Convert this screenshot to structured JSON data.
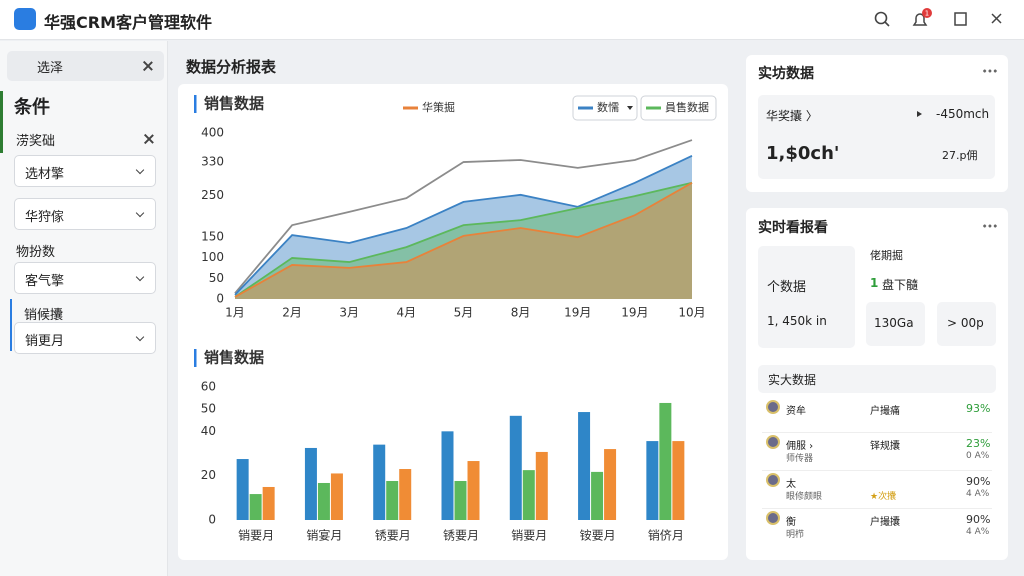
{
  "header": {
    "title": "华强CRM客户管理软件",
    "badge": "1"
  },
  "sidebar": {
    "back": "选泽",
    "section": "条件",
    "group1": "涝奖础",
    "dropdown1": "选材擎",
    "dropdown2": "华狩傢",
    "group2": "物扮数",
    "dropdown3": "客气擎",
    "group3": "销候攮",
    "dropdown4": "销更月"
  },
  "main": {
    "title": "数据分析报表"
  },
  "chart_data": [
    {
      "type": "area",
      "title": "销售数据",
      "categories": [
        "1月",
        "2月",
        "3月",
        "4月",
        "5月",
        "8月",
        "19月",
        "19月",
        "10月"
      ],
      "ylim": [
        0,
        400
      ],
      "yticks": [
        0,
        50,
        100,
        150,
        250,
        330,
        400
      ],
      "grid": false,
      "series": [
        {
          "color": "#8c8c8c",
          "style": "line",
          "values": [
            14,
            178,
            210,
            243,
            330,
            335,
            316,
            335,
            383
          ]
        },
        {
          "name": "数懦",
          "color": "#3b82c4",
          "values": [
            10,
            154,
            135,
            171,
            234,
            251,
            222,
            280,
            345
          ]
        },
        {
          "name": "員售数据",
          "color": "#5cb85c",
          "values": [
            5,
            99,
            89,
            125,
            178,
            190,
            219,
            248,
            280
          ]
        },
        {
          "name": "华策掘",
          "color": "#e8823a",
          "values": [
            5,
            82,
            75,
            89,
            152,
            171,
            149,
            202,
            280
          ]
        }
      ]
    },
    {
      "type": "bar",
      "title": "销售数据",
      "categories": [
        "销要月",
        "销宴月",
        "锈要月",
        "锈要月",
        "销要月",
        "铵要月",
        "销侪月"
      ],
      "ylim": [
        0,
        60
      ],
      "yticks": [
        0,
        20,
        40,
        50,
        60
      ],
      "grid": false,
      "series": [
        {
          "color": "#2f86c8",
          "values": [
            27.5,
            32.5,
            34,
            40,
            47,
            48.7,
            35.6
          ]
        },
        {
          "color": "#5cb85c",
          "values": [
            11.7,
            16.7,
            17.6,
            17.6,
            22.5,
            21.7,
            52.8
          ]
        },
        {
          "color": "#f08c35",
          "values": [
            14.9,
            21,
            23,
            26.6,
            30.7,
            32,
            35.6
          ]
        }
      ]
    }
  ],
  "panel1": {
    "title": "实坊数据",
    "label": "华奖攮 〉",
    "delta": "-450mch",
    "big": "1,$0ch'",
    "note": "27.p佣"
  },
  "panel2": {
    "title": "实时看报看",
    "box_title": "个数据",
    "box_value": "1, 450k in",
    "side_title": "佬期掘",
    "side_num": "1",
    "side_text": "盘下髓",
    "small1": "130Ga",
    "small2": "> 00p",
    "list_title": "实大数据",
    "rows": [
      {
        "name": "资牟",
        "type": "户撮痛",
        "pct": "93%"
      },
      {
        "name": "佣服 ›",
        "type": "铎规攮",
        "pct": "23%",
        "sub": "师传器",
        "sub_right": "0 A%"
      },
      {
        "name": "太",
        "pct": "90%",
        "sub": "眼修颇眼",
        "type2": "★次攮",
        "sub_right": "4 A%"
      },
      {
        "name": "衡",
        "type": "户撮攮",
        "pct": "90%",
        "sub": "明栉",
        "sub_right": "4 A%"
      }
    ]
  }
}
